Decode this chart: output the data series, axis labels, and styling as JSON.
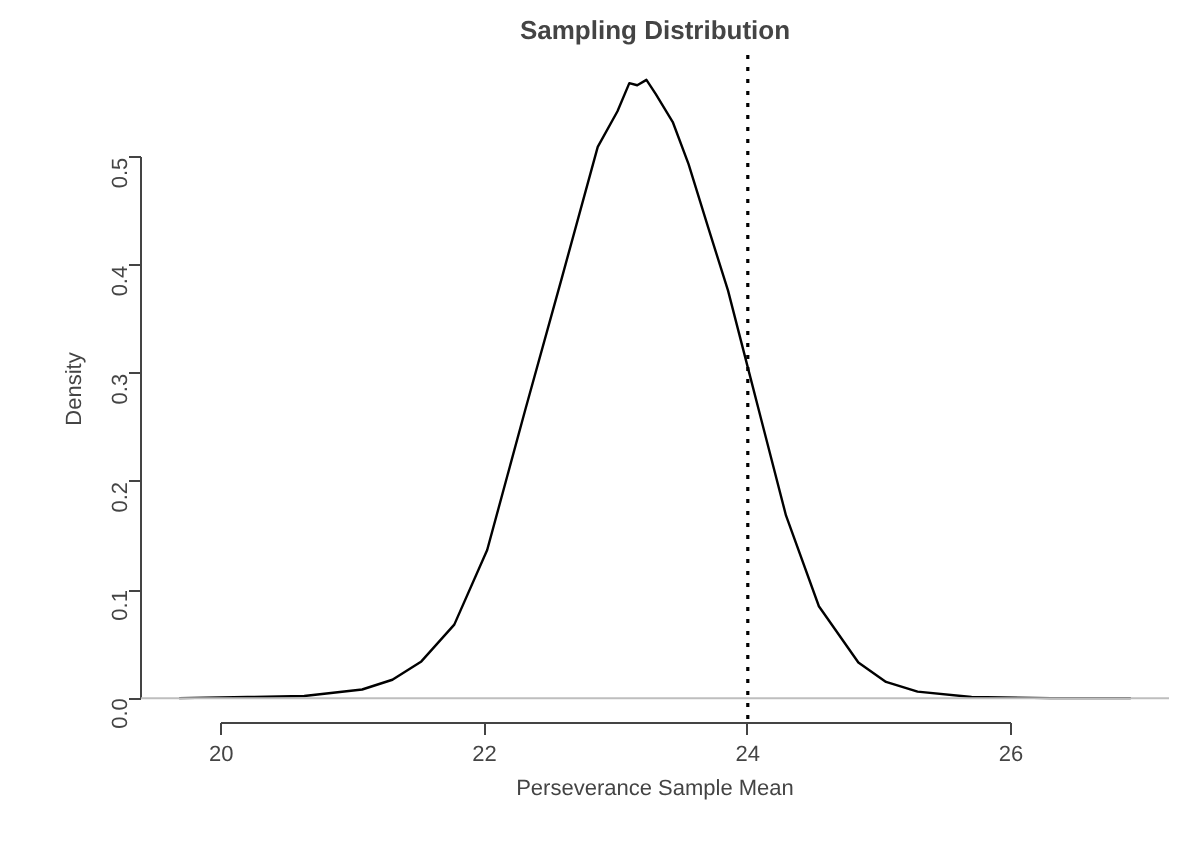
{
  "chart_data": {
    "type": "line",
    "title": "Sampling Distribution",
    "xlabel": "Perseverance Sample Mean",
    "ylabel": "Density",
    "x": [
      19.68,
      20.2,
      20.63,
      21.07,
      21.3,
      21.52,
      21.77,
      22.02,
      22.31,
      22.59,
      22.86,
      23.01,
      23.1,
      23.16,
      23.23,
      23.3,
      23.43,
      23.55,
      23.7,
      23.85,
      24.0,
      24.29,
      24.54,
      24.84,
      25.05,
      25.29,
      25.7,
      26.3,
      26.91
    ],
    "series": [
      {
        "color": "#000000",
        "values": [
          0.0,
          0.001,
          0.002,
          0.008,
          0.017,
          0.034,
          0.068,
          0.137,
          0.267,
          0.39,
          0.51,
          0.543,
          0.569,
          0.567,
          0.572,
          0.559,
          0.533,
          0.494,
          0.435,
          0.377,
          0.306,
          0.169,
          0.085,
          0.033,
          0.015,
          0.006,
          0.001,
          0.0,
          0.0
        ]
      }
    ],
    "xlim": [
      19.39,
      27.2
    ],
    "ylim": [
      -0.023,
      0.595
    ],
    "xticks": [
      20,
      22,
      24,
      26
    ],
    "yticks": [
      {
        "value": 0,
        "label": "0.0"
      },
      0.1,
      0.2,
      0.3,
      0.4,
      0.5
    ],
    "ref_lines": [
      {
        "axis": "y",
        "value": 0,
        "color": "#bebebe",
        "line_style": "solid"
      },
      {
        "axis": "x",
        "value": 24,
        "color": "#000000",
        "line_style": "dotted"
      }
    ],
    "grid": false,
    "marker": "none",
    "line_style": "solid"
  }
}
